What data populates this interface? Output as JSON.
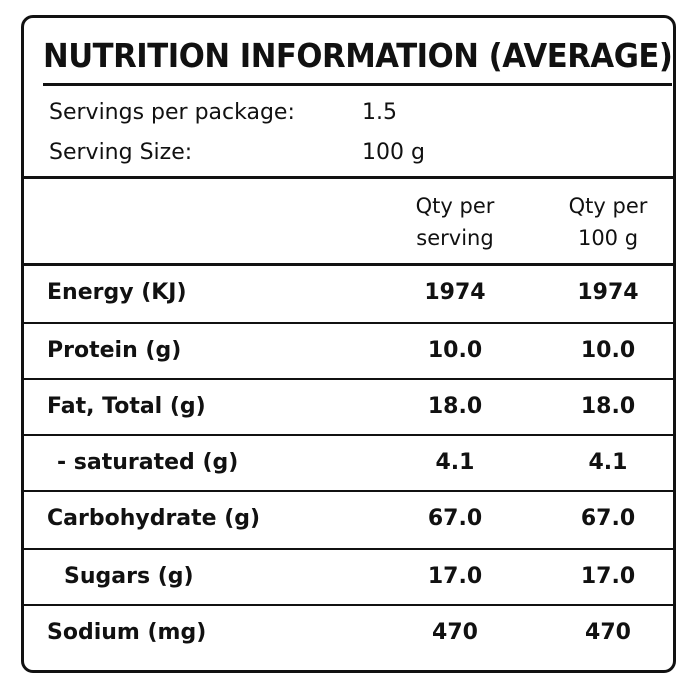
{
  "title": "NUTRITION INFORMATION (AVERAGE)",
  "servings_per_package": {
    "label": "Servings per package:",
    "value": "1.5"
  },
  "serving_size": {
    "label": "Serving Size:",
    "value": "100 g"
  },
  "columns": {
    "per_serving": [
      "Qty per",
      "serving"
    ],
    "per_100g": [
      "Qty per",
      "100 g"
    ]
  },
  "rows": [
    {
      "name": "Energy (KJ)",
      "per_serving": "1974",
      "per_100g": "1974"
    },
    {
      "name": "Protein (g)",
      "per_serving": "10.0",
      "per_100g": "10.0"
    },
    {
      "name": "Fat, Total (g)",
      "per_serving": "18.0",
      "per_100g": "18.0"
    },
    {
      "name": "- saturated (g)",
      "per_serving": "4.1",
      "per_100g": "4.1"
    },
    {
      "name": "Carbohydrate (g)",
      "per_serving": "67.0",
      "per_100g": "67.0"
    },
    {
      "name": "Sugars (g)",
      "per_serving": "17.0",
      "per_100g": "17.0"
    },
    {
      "name": "Sodium (mg)",
      "per_serving": "470",
      "per_100g": "470"
    }
  ]
}
